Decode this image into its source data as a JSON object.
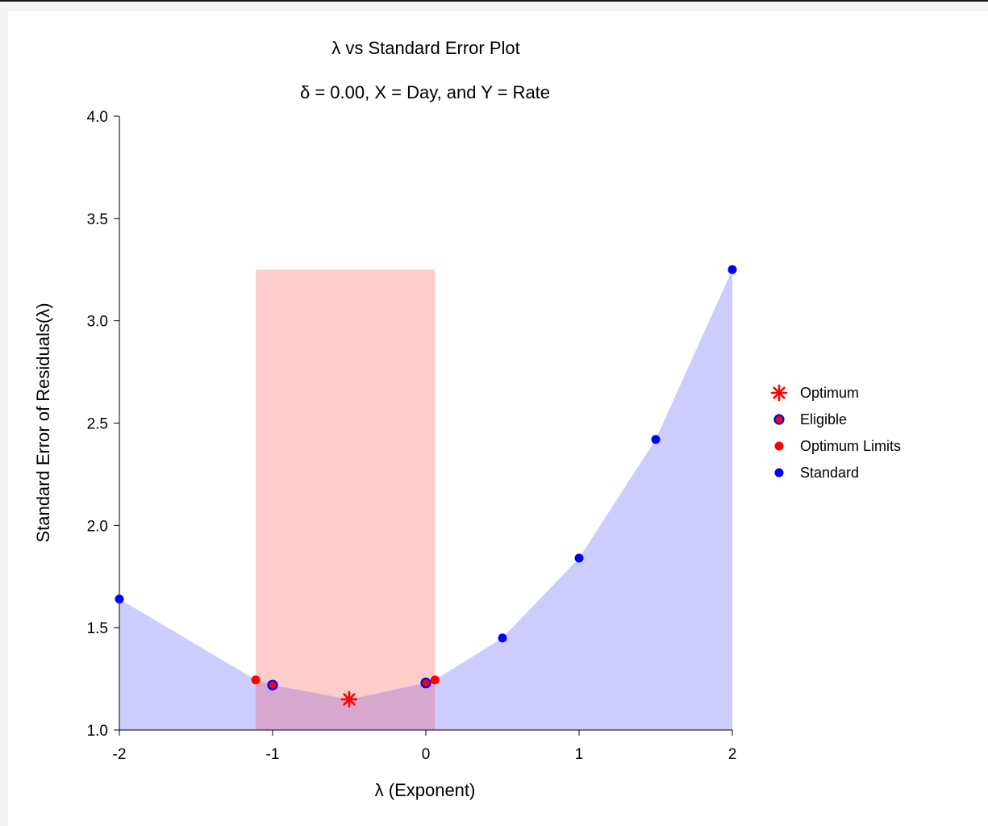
{
  "chart_data": {
    "type": "scatter",
    "title": "λ vs Standard Error Plot",
    "subtitle": "δ = 0.00, X = Day, and Y = Rate",
    "xlabel": "λ (Exponent)",
    "ylabel": "Standard Error of Residuals(λ)",
    "xlim": [
      -2,
      2
    ],
    "ylim": [
      1.0,
      4.0
    ],
    "x_ticks": [
      "-2",
      "-1",
      "0",
      "1",
      "2"
    ],
    "y_ticks": [
      "1.0",
      "1.5",
      "2.0",
      "2.5",
      "3.0",
      "3.5",
      "4.0"
    ],
    "optimum_region": {
      "x": [
        -1.11,
        0.06
      ],
      "y_top": 3.25
    },
    "series": [
      {
        "name": "Optimum",
        "marker": "asterisk",
        "color": "#ff0000",
        "points": [
          {
            "x": -0.5,
            "y": 1.15
          }
        ]
      },
      {
        "name": "Eligible",
        "marker": "circle-outlined",
        "color": "#ff0000",
        "edge": "#0000ff",
        "points": [
          {
            "x": -1.0,
            "y": 1.22
          },
          {
            "x": 0.0,
            "y": 1.23
          }
        ]
      },
      {
        "name": "Optimum Limits",
        "marker": "circle",
        "color": "#ff0000",
        "points": [
          {
            "x": -1.11,
            "y": 1.245
          },
          {
            "x": 0.06,
            "y": 1.245
          }
        ]
      },
      {
        "name": "Standard",
        "marker": "circle",
        "color": "#0000ff",
        "points": [
          {
            "x": -2.0,
            "y": 1.64
          },
          {
            "x": 0.5,
            "y": 1.45
          },
          {
            "x": 1.0,
            "y": 1.84
          },
          {
            "x": 1.5,
            "y": 2.42
          },
          {
            "x": 2.0,
            "y": 3.25
          }
        ]
      }
    ],
    "curve": [
      {
        "x": -2.0,
        "y": 1.64
      },
      {
        "x": -1.11,
        "y": 1.245
      },
      {
        "x": -1.0,
        "y": 1.22
      },
      {
        "x": -0.5,
        "y": 1.15
      },
      {
        "x": 0.0,
        "y": 1.23
      },
      {
        "x": 0.06,
        "y": 1.245
      },
      {
        "x": 0.5,
        "y": 1.45
      },
      {
        "x": 1.0,
        "y": 1.84
      },
      {
        "x": 1.5,
        "y": 2.42
      },
      {
        "x": 2.0,
        "y": 3.25
      }
    ],
    "legend": [
      "Optimum",
      "Eligible",
      "Optimum Limits",
      "Standard"
    ],
    "legend_position": "right",
    "colors": {
      "fill": "#ccccff",
      "region": "#ffcccc",
      "overlap": "#d8a7d0"
    },
    "grid": false
  }
}
